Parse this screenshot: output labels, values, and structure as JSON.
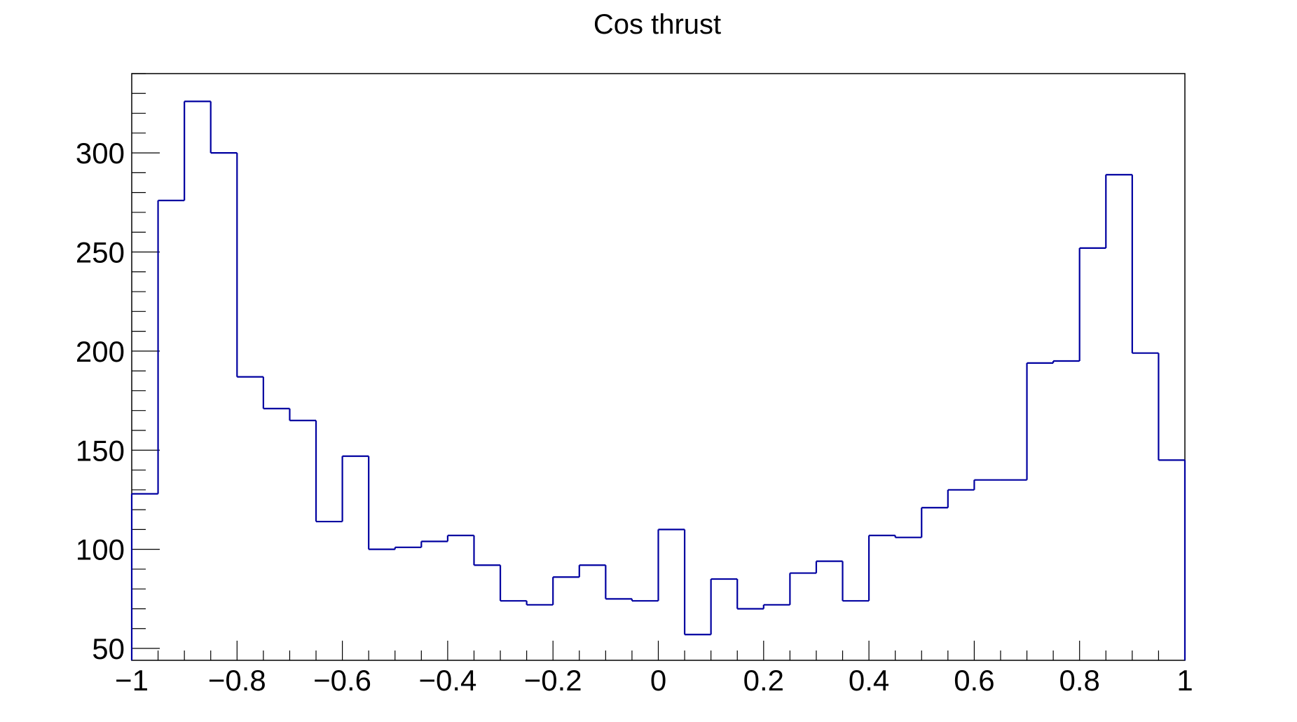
{
  "chart_data": {
    "type": "histogram",
    "title": "Cos thrust",
    "xlabel": "",
    "ylabel": "",
    "xlim": [
      -1,
      1
    ],
    "ylim": [
      44,
      340
    ],
    "x_ticks": [
      -1,
      -0.8,
      -0.6,
      -0.4,
      -0.2,
      0,
      0.2,
      0.4,
      0.6,
      0.8,
      1
    ],
    "x_tick_labels": [
      "−1",
      "−0.8",
      "−0.6",
      "−0.4",
      "−0.2",
      "0",
      "0.2",
      "0.4",
      "0.6",
      "0.8",
      "1"
    ],
    "y_ticks": [
      50,
      100,
      150,
      200,
      250,
      300
    ],
    "y_tick_labels": [
      "50",
      "100",
      "150",
      "200",
      "250",
      "300"
    ],
    "bin_width": 0.05,
    "bin_edges": [
      -1,
      -0.95,
      -0.9,
      -0.85,
      -0.8,
      -0.75,
      -0.7,
      -0.65,
      -0.6,
      -0.55,
      -0.5,
      -0.45,
      -0.4,
      -0.35,
      -0.3,
      -0.25,
      -0.2,
      -0.15,
      -0.1,
      -0.05,
      0,
      0.05,
      0.1,
      0.15,
      0.2,
      0.25,
      0.3,
      0.35,
      0.4,
      0.45,
      0.5,
      0.55,
      0.6,
      0.65,
      0.7,
      0.75,
      0.8,
      0.85,
      0.9,
      0.95,
      1
    ],
    "values": [
      128,
      276,
      326,
      300,
      187,
      171,
      165,
      114,
      147,
      100,
      101,
      104,
      107,
      92,
      74,
      72,
      86,
      92,
      75,
      74,
      110,
      57,
      85,
      70,
      72,
      88,
      94,
      74,
      107,
      106,
      121,
      130,
      135,
      135,
      194,
      195,
      252,
      289,
      199,
      145
    ],
    "line_color": "#0000a0",
    "grid": false,
    "legend": "none"
  }
}
